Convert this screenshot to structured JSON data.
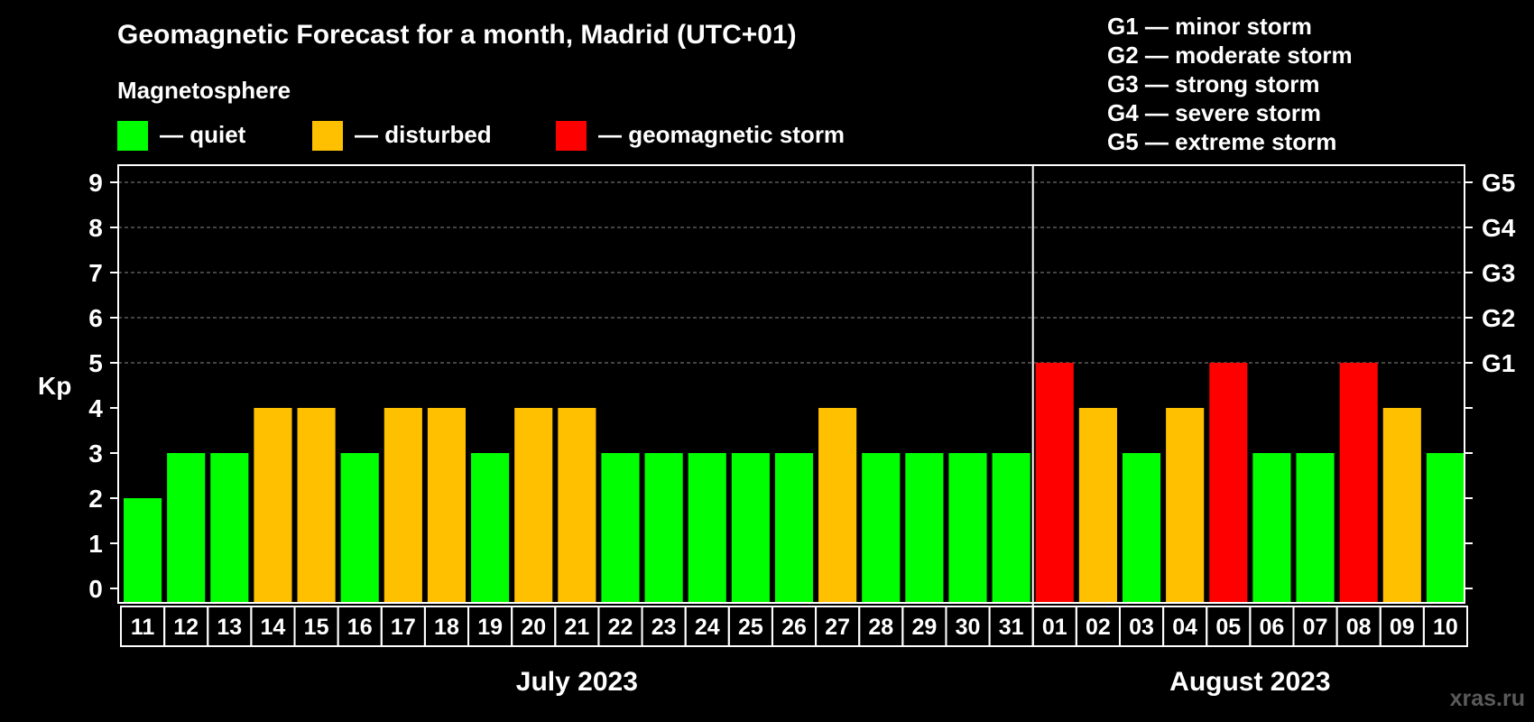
{
  "colors": {
    "quiet": "#00ff00",
    "disturbed": "#ffc000",
    "storm": "#ff0000",
    "background": "#000000",
    "axis": "#ffffff",
    "grid": "#888888"
  },
  "chart_data": {
    "type": "bar",
    "title": "Geomagnetic Forecast for a month, Madrid (UTC+01)",
    "subtitle": "Magnetosphere",
    "ylabel": "Kp",
    "ylim": [
      0,
      9
    ],
    "yticks": [
      "0",
      "1",
      "2",
      "3",
      "4",
      "5",
      "6",
      "7",
      "8",
      "9"
    ],
    "g_scale_labels": [
      {
        "kp": 5,
        "label": "G1"
      },
      {
        "kp": 6,
        "label": "G2"
      },
      {
        "kp": 7,
        "label": "G3"
      },
      {
        "kp": 8,
        "label": "G4"
      },
      {
        "kp": 9,
        "label": "G5"
      }
    ],
    "legend": [
      {
        "key": "quiet",
        "label": "— quiet"
      },
      {
        "key": "disturbed",
        "label": "— disturbed"
      },
      {
        "key": "storm",
        "label": "— geomagnetic storm"
      }
    ],
    "g_scale_legend": [
      "G1 — minor storm",
      "G2 — moderate storm",
      "G3 — strong storm",
      "G4 — severe storm",
      "G5 — extreme storm"
    ],
    "categories": [
      "11",
      "12",
      "13",
      "14",
      "15",
      "16",
      "17",
      "18",
      "19",
      "20",
      "21",
      "22",
      "23",
      "24",
      "25",
      "26",
      "27",
      "28",
      "29",
      "30",
      "31",
      "01",
      "02",
      "03",
      "04",
      "05",
      "06",
      "07",
      "08",
      "09",
      "10"
    ],
    "values": [
      2,
      3,
      3,
      4,
      4,
      3,
      4,
      4,
      3,
      4,
      4,
      3,
      3,
      3,
      3,
      3,
      4,
      3,
      3,
      3,
      3,
      5,
      4,
      3,
      4,
      5,
      3,
      3,
      5,
      4,
      3
    ],
    "months": [
      {
        "label": "July 2023",
        "start": 0,
        "count": 21
      },
      {
        "label": "August 2023",
        "start": 21,
        "count": 10
      }
    ]
  },
  "watermark": "xras.ru"
}
